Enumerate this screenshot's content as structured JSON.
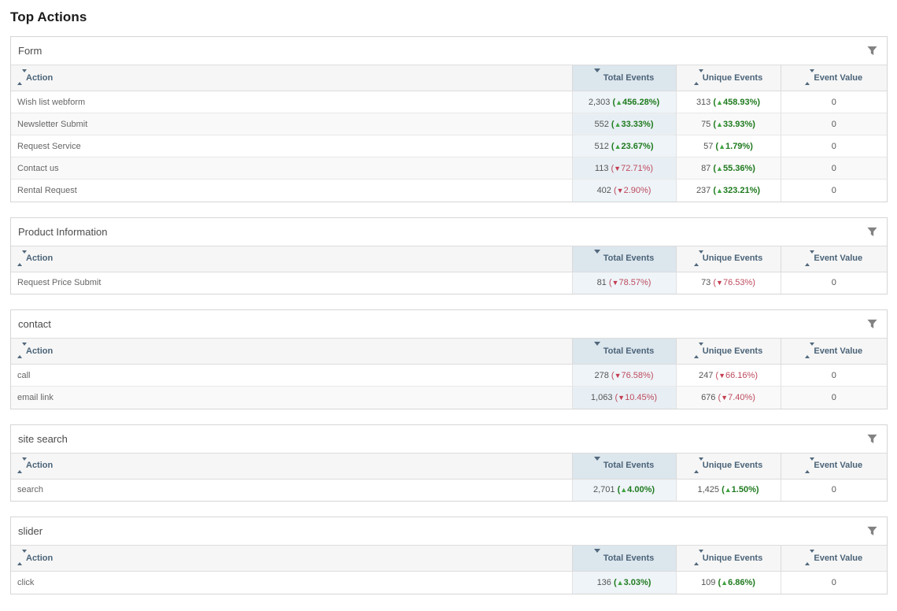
{
  "page": {
    "title": "Top Actions"
  },
  "icons": {
    "up_triangle": "▲",
    "down_triangle": "▼",
    "filter": "funnel-icon",
    "sorted_column_marker": "down-caret",
    "unsorted_column_marker": "up-down-carets"
  },
  "colors": {
    "positive": "#1f7a1f",
    "positive_triangle": "#3fa33f",
    "negative": "#bd4a5e",
    "negative_triangle": "#c43b50",
    "sorted_header_bg": "#dce6ed",
    "sorted_cell_bg": "#eef4f8",
    "header_bg": "#f6f6f6",
    "header_text": "#4a6378"
  },
  "columns": {
    "action": "Action",
    "total": "Total Events",
    "unique": "Unique Events",
    "value": "Event Value"
  },
  "sort": {
    "sorted_column": "total",
    "direction": "desc"
  },
  "sections": [
    {
      "title": "Form",
      "rows": [
        {
          "action": "Wish list webform",
          "total": {
            "value": "2,303",
            "pct": "456.28%",
            "dir": "up"
          },
          "unique": {
            "value": "313",
            "pct": "458.93%",
            "dir": "up"
          },
          "event_value": "0"
        },
        {
          "action": "Newsletter Submit",
          "total": {
            "value": "552",
            "pct": "33.33%",
            "dir": "up"
          },
          "unique": {
            "value": "75",
            "pct": "33.93%",
            "dir": "up"
          },
          "event_value": "0"
        },
        {
          "action": "Request Service",
          "total": {
            "value": "512",
            "pct": "23.67%",
            "dir": "up"
          },
          "unique": {
            "value": "57",
            "pct": "1.79%",
            "dir": "up"
          },
          "event_value": "0"
        },
        {
          "action": "Contact us",
          "total": {
            "value": "113",
            "pct": "72.71%",
            "dir": "down"
          },
          "unique": {
            "value": "87",
            "pct": "55.36%",
            "dir": "up"
          },
          "event_value": "0"
        },
        {
          "action": "Rental Request",
          "total": {
            "value": "402",
            "pct": "2.90%",
            "dir": "down"
          },
          "unique": {
            "value": "237",
            "pct": "323.21%",
            "dir": "up"
          },
          "event_value": "0"
        }
      ]
    },
    {
      "title": "Product Information",
      "rows": [
        {
          "action": "Request Price Submit",
          "total": {
            "value": "81",
            "pct": "78.57%",
            "dir": "down"
          },
          "unique": {
            "value": "73",
            "pct": "76.53%",
            "dir": "down"
          },
          "event_value": "0"
        }
      ]
    },
    {
      "title": "contact",
      "rows": [
        {
          "action": "call",
          "total": {
            "value": "278",
            "pct": "76.58%",
            "dir": "down"
          },
          "unique": {
            "value": "247",
            "pct": "66.16%",
            "dir": "down"
          },
          "event_value": "0"
        },
        {
          "action": "email link",
          "total": {
            "value": "1,063",
            "pct": "10.45%",
            "dir": "down"
          },
          "unique": {
            "value": "676",
            "pct": "7.40%",
            "dir": "down"
          },
          "event_value": "0"
        }
      ]
    },
    {
      "title": "site search",
      "rows": [
        {
          "action": "search",
          "total": {
            "value": "2,701",
            "pct": "4.00%",
            "dir": "up"
          },
          "unique": {
            "value": "1,425",
            "pct": "1.50%",
            "dir": "up"
          },
          "event_value": "0"
        }
      ]
    },
    {
      "title": "slider",
      "rows": [
        {
          "action": "click",
          "total": {
            "value": "136",
            "pct": "3.03%",
            "dir": "up"
          },
          "unique": {
            "value": "109",
            "pct": "6.86%",
            "dir": "up"
          },
          "event_value": "0"
        }
      ]
    }
  ]
}
